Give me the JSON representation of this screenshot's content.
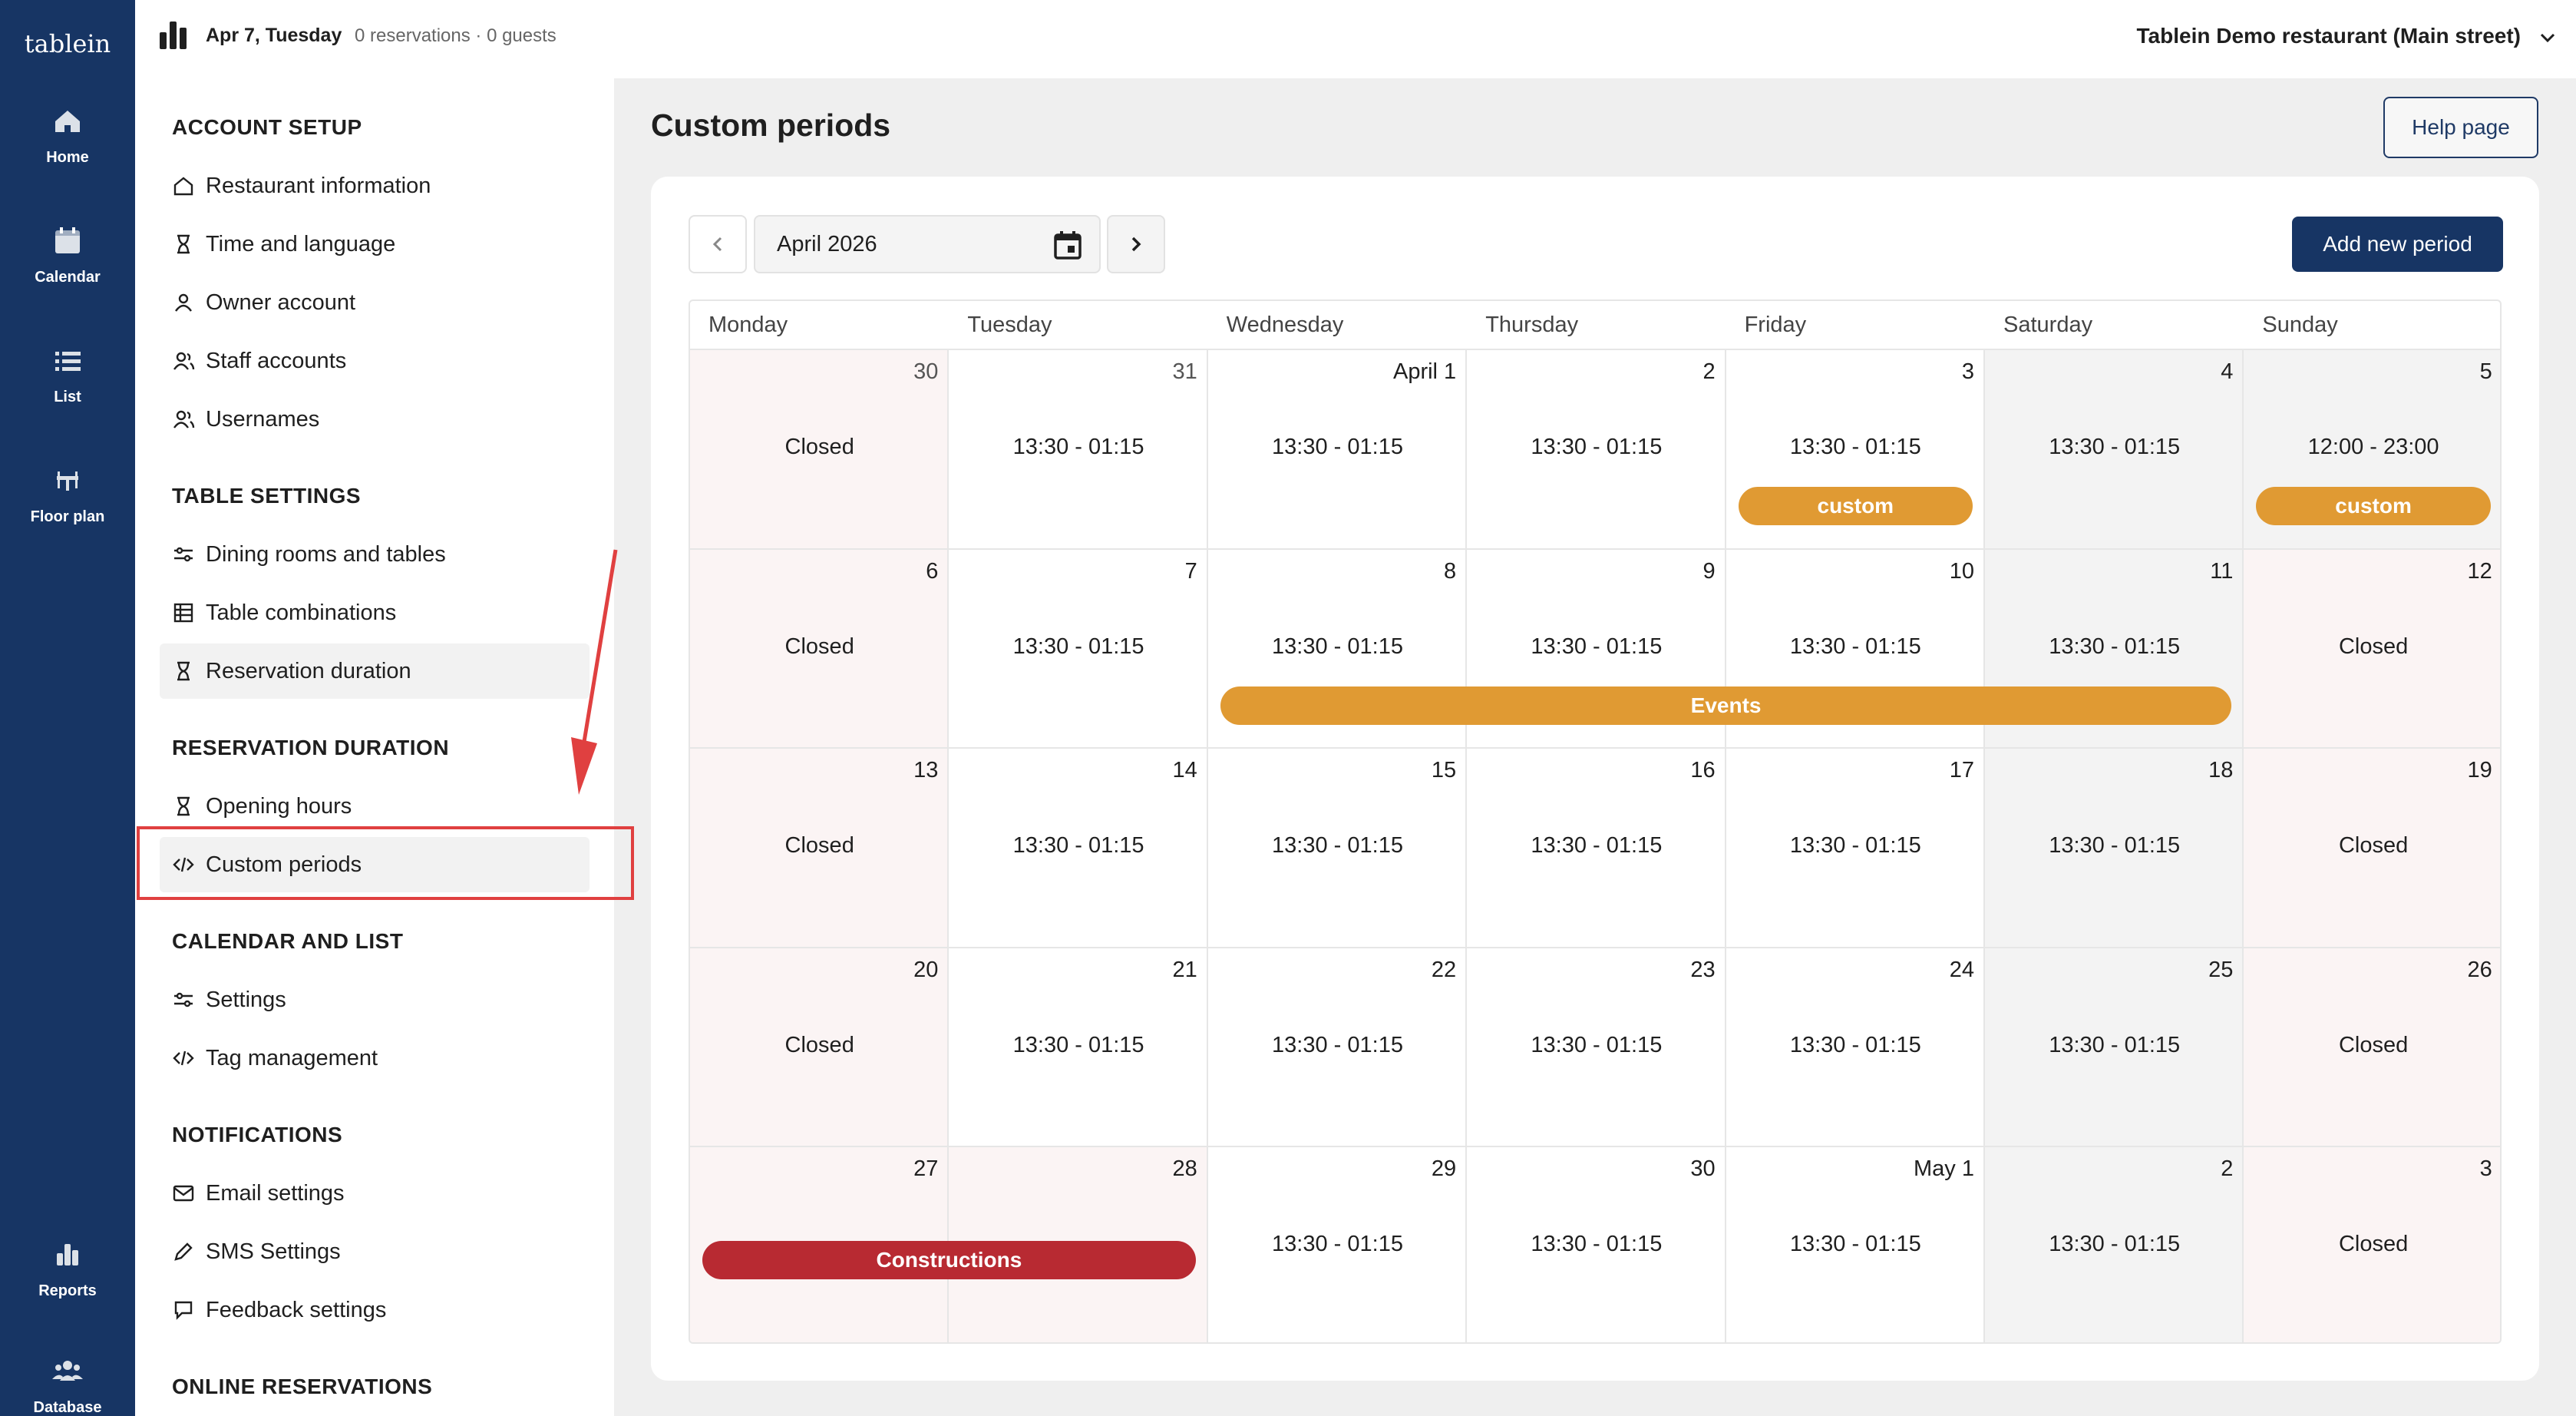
{
  "rail": {
    "logo": "tablein",
    "items": [
      {
        "label": "Home",
        "icon": "home-icon"
      },
      {
        "label": "Calendar",
        "icon": "calendar-icon"
      },
      {
        "label": "List",
        "icon": "list-icon"
      },
      {
        "label": "Floor plan",
        "icon": "floor-plan-icon"
      },
      {
        "label": "Reports",
        "icon": "reports-icon"
      },
      {
        "label": "Database",
        "icon": "database-icon"
      }
    ]
  },
  "topbar": {
    "date": "Apr 7, Tuesday",
    "reservations": "0 reservations · 0 guests",
    "restaurant": "Tablein Demo restaurant (Main street)"
  },
  "sidebar": {
    "sections": [
      {
        "title": "ACCOUNT SETUP",
        "items": [
          {
            "label": "Restaurant information",
            "icon": "house-icon"
          },
          {
            "label": "Time and language",
            "icon": "hourglass-icon"
          },
          {
            "label": "Owner account",
            "icon": "user-icon"
          },
          {
            "label": "Staff accounts",
            "icon": "users-icon"
          },
          {
            "label": "Usernames",
            "icon": "users-icon"
          }
        ]
      },
      {
        "title": "TABLE SETTINGS",
        "items": [
          {
            "label": "Dining rooms and tables",
            "icon": "sliders-icon"
          },
          {
            "label": "Table combinations",
            "icon": "table-icon"
          },
          {
            "label": "Reservation duration",
            "icon": "hourglass-icon"
          }
        ]
      },
      {
        "title": "RESERVATION DURATION",
        "items": [
          {
            "label": "Opening hours",
            "icon": "hourglass-icon"
          },
          {
            "label": "Custom periods",
            "icon": "code-icon"
          }
        ]
      },
      {
        "title": "CALENDAR AND LIST",
        "items": [
          {
            "label": "Settings",
            "icon": "sliders-icon"
          },
          {
            "label": "Tag management",
            "icon": "code-icon"
          }
        ]
      },
      {
        "title": "NOTIFICATIONS",
        "items": [
          {
            "label": "Email settings",
            "icon": "mail-icon"
          },
          {
            "label": "SMS Settings",
            "icon": "pencil-icon"
          },
          {
            "label": "Feedback settings",
            "icon": "chat-icon"
          }
        ]
      },
      {
        "title": "ONLINE RESERVATIONS",
        "items": []
      }
    ]
  },
  "main": {
    "title": "Custom periods",
    "help_label": "Help page",
    "month": "April 2026",
    "add_label": "Add new period",
    "weekdays": [
      "Monday",
      "Tuesday",
      "Wednesday",
      "Thursday",
      "Friday",
      "Saturday",
      "Sunday"
    ],
    "weeks": [
      [
        {
          "day": "30",
          "hours": "Closed",
          "kind": "closed"
        },
        {
          "day": "31",
          "hours": "13:30 - 01:15",
          "kind": "open"
        },
        {
          "day": "April 1",
          "hours": "13:30 - 01:15",
          "kind": "open"
        },
        {
          "day": "2",
          "hours": "13:30 - 01:15",
          "kind": "open"
        },
        {
          "day": "3",
          "hours": "13:30 - 01:15",
          "kind": "open"
        },
        {
          "day": "4",
          "hours": "13:30 - 01:15",
          "kind": "weekend"
        },
        {
          "day": "5",
          "hours": "12:00 - 23:00",
          "kind": "weekend"
        }
      ],
      [
        {
          "day": "6",
          "hours": "Closed",
          "kind": "closed"
        },
        {
          "day": "7",
          "hours": "13:30 - 01:15",
          "kind": "open"
        },
        {
          "day": "8",
          "hours": "13:30 - 01:15",
          "kind": "open"
        },
        {
          "day": "9",
          "hours": "13:30 - 01:15",
          "kind": "open"
        },
        {
          "day": "10",
          "hours": "13:30 - 01:15",
          "kind": "open"
        },
        {
          "day": "11",
          "hours": "13:30 - 01:15",
          "kind": "weekend"
        },
        {
          "day": "12",
          "hours": "Closed",
          "kind": "closed"
        }
      ],
      [
        {
          "day": "13",
          "hours": "Closed",
          "kind": "closed"
        },
        {
          "day": "14",
          "hours": "13:30 - 01:15",
          "kind": "open"
        },
        {
          "day": "15",
          "hours": "13:30 - 01:15",
          "kind": "open"
        },
        {
          "day": "16",
          "hours": "13:30 - 01:15",
          "kind": "open"
        },
        {
          "day": "17",
          "hours": "13:30 - 01:15",
          "kind": "open"
        },
        {
          "day": "18",
          "hours": "13:30 - 01:15",
          "kind": "weekend"
        },
        {
          "day": "19",
          "hours": "Closed",
          "kind": "closed"
        }
      ],
      [
        {
          "day": "20",
          "hours": "Closed",
          "kind": "closed"
        },
        {
          "day": "21",
          "hours": "13:30 - 01:15",
          "kind": "open"
        },
        {
          "day": "22",
          "hours": "13:30 - 01:15",
          "kind": "open"
        },
        {
          "day": "23",
          "hours": "13:30 - 01:15",
          "kind": "open"
        },
        {
          "day": "24",
          "hours": "13:30 - 01:15",
          "kind": "open"
        },
        {
          "day": "25",
          "hours": "13:30 - 01:15",
          "kind": "weekend"
        },
        {
          "day": "26",
          "hours": "Closed",
          "kind": "closed"
        }
      ],
      [
        {
          "day": "27",
          "hours": "",
          "kind": "closed"
        },
        {
          "day": "28",
          "hours": "",
          "kind": "closed"
        },
        {
          "day": "29",
          "hours": "13:30 - 01:15",
          "kind": "open"
        },
        {
          "day": "30",
          "hours": "13:30 - 01:15",
          "kind": "open"
        },
        {
          "day": "May 1",
          "hours": "13:30 - 01:15",
          "kind": "open"
        },
        {
          "day": "2",
          "hours": "13:30 - 01:15",
          "kind": "weekend"
        },
        {
          "day": "3",
          "hours": "Closed",
          "kind": "closed"
        }
      ]
    ],
    "periods": [
      {
        "label": "custom",
        "week": 0,
        "start": 4,
        "end": 4,
        "color": "#e09a33"
      },
      {
        "label": "custom",
        "week": 0,
        "start": 6,
        "end": 6,
        "color": "#e09a33"
      },
      {
        "label": "Events",
        "week": 1,
        "start": 2,
        "end": 5,
        "color": "#e09a33"
      },
      {
        "label": "Constructions",
        "week": 4,
        "start": 0,
        "end": 1,
        "color": "#b82a32"
      }
    ]
  },
  "colors": {
    "rail": "#173564",
    "accent": "#173564",
    "closed_bg": "#fbf4f4",
    "weekend_bg": "#f3f3f3",
    "annotation": "#e04040"
  }
}
